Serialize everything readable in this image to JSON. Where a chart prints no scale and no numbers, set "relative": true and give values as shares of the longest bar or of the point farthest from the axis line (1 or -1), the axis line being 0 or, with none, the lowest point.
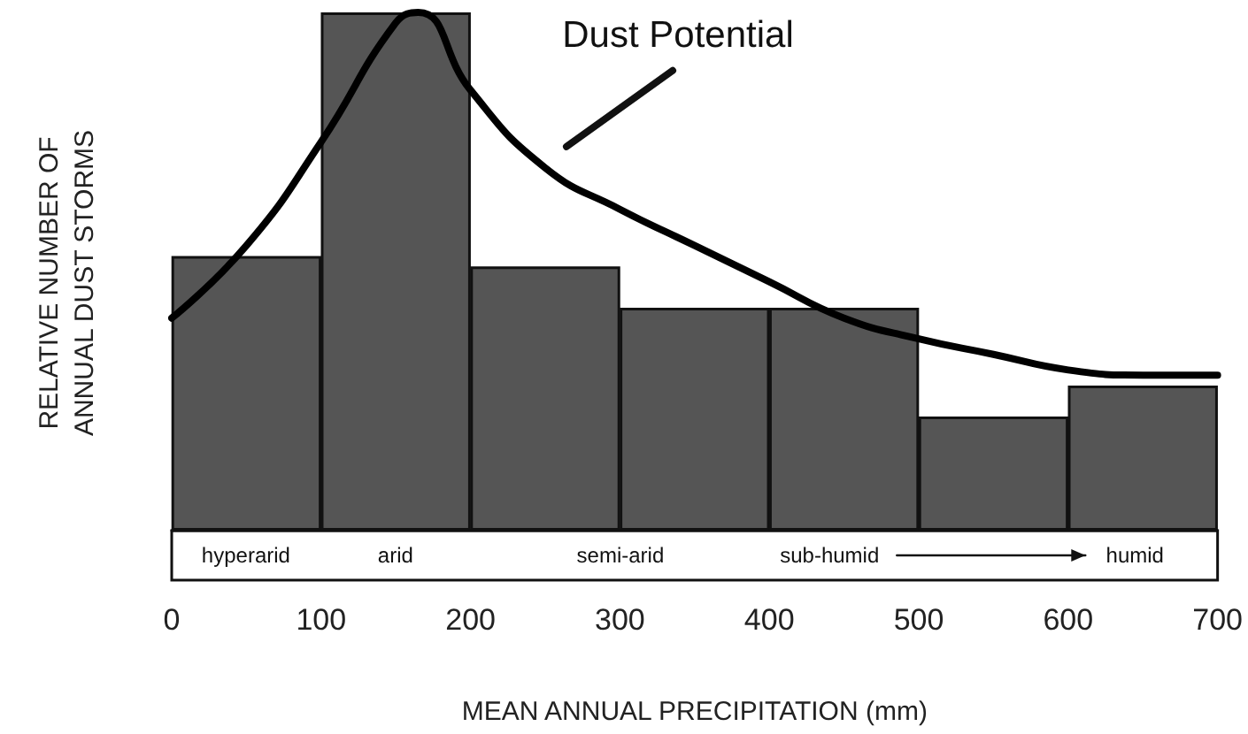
{
  "chart_data": {
    "type": "histogram",
    "relative": true,
    "xlabel": "MEAN ANNUAL PRECIPITATION (mm)",
    "ylabel": "RELATIVE NUMBER OF\nANNUAL DUST STORMS",
    "bins": [
      0,
      100,
      200,
      300,
      400,
      500,
      600,
      700
    ],
    "values": [
      0.53,
      1,
      0.51,
      0.43,
      0.43,
      0.22,
      0.28
    ],
    "color": "#555555",
    "series": [
      {
        "type": "line",
        "name": "Dust Potential",
        "color": "#000000",
        "x": [
          0,
          50,
          100,
          150,
          165,
          200,
          250,
          300,
          350,
          400,
          450,
          500,
          550,
          600,
          650,
          700
        ],
        "values": [
          0.41,
          0.55,
          0.75,
          0.98,
          1,
          0.85,
          0.7,
          0.62,
          0.55,
          0.48,
          0.41,
          0.37,
          0.34,
          0.31,
          0.3,
          0.3
        ]
      }
    ],
    "annotations": [
      "hyperarid",
      "arid",
      "semi-arid",
      "sub-humid",
      "humid"
    ],
    "xlim": [
      0,
      700
    ],
    "xticks": [
      0,
      100,
      200,
      300,
      400,
      500,
      600,
      700
    ],
    "grid": false,
    "legend": false,
    "marker": "none",
    "line_style": "solid"
  }
}
